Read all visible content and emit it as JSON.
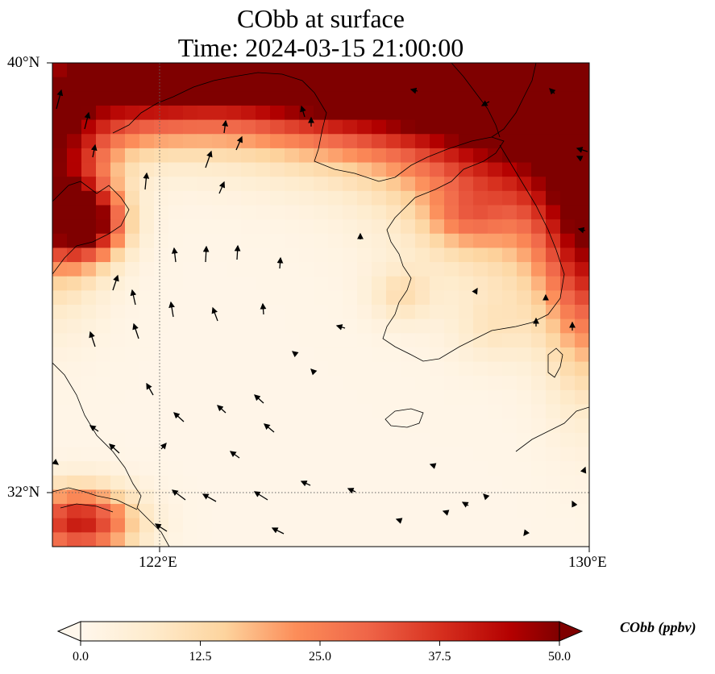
{
  "title": {
    "line1": "CObb at surface",
    "line2": "Time: 2024-03-15 21:00:00"
  },
  "map": {
    "lat_range": [
      31,
      40
    ],
    "lon_range": [
      120,
      130
    ],
    "lat_labels": [
      "40°N",
      "32°N"
    ],
    "lon_labels": [
      "122°E",
      "130°E"
    ],
    "gridlines": {
      "lats": [
        32
      ],
      "lons": [
        122
      ],
      "style": "dotted"
    }
  },
  "colorbar": {
    "label": "CObb (ppbv)",
    "ticks": [
      "0.0",
      "12.5",
      "25.0",
      "37.5",
      "50.0"
    ],
    "min": 0,
    "max": 50,
    "colormap": "OrRd",
    "extend": "both"
  },
  "colors": {
    "low": "#fff7ec",
    "mid": "#fdd49e",
    "high": "#b30000",
    "max": "#7f0000"
  }
}
